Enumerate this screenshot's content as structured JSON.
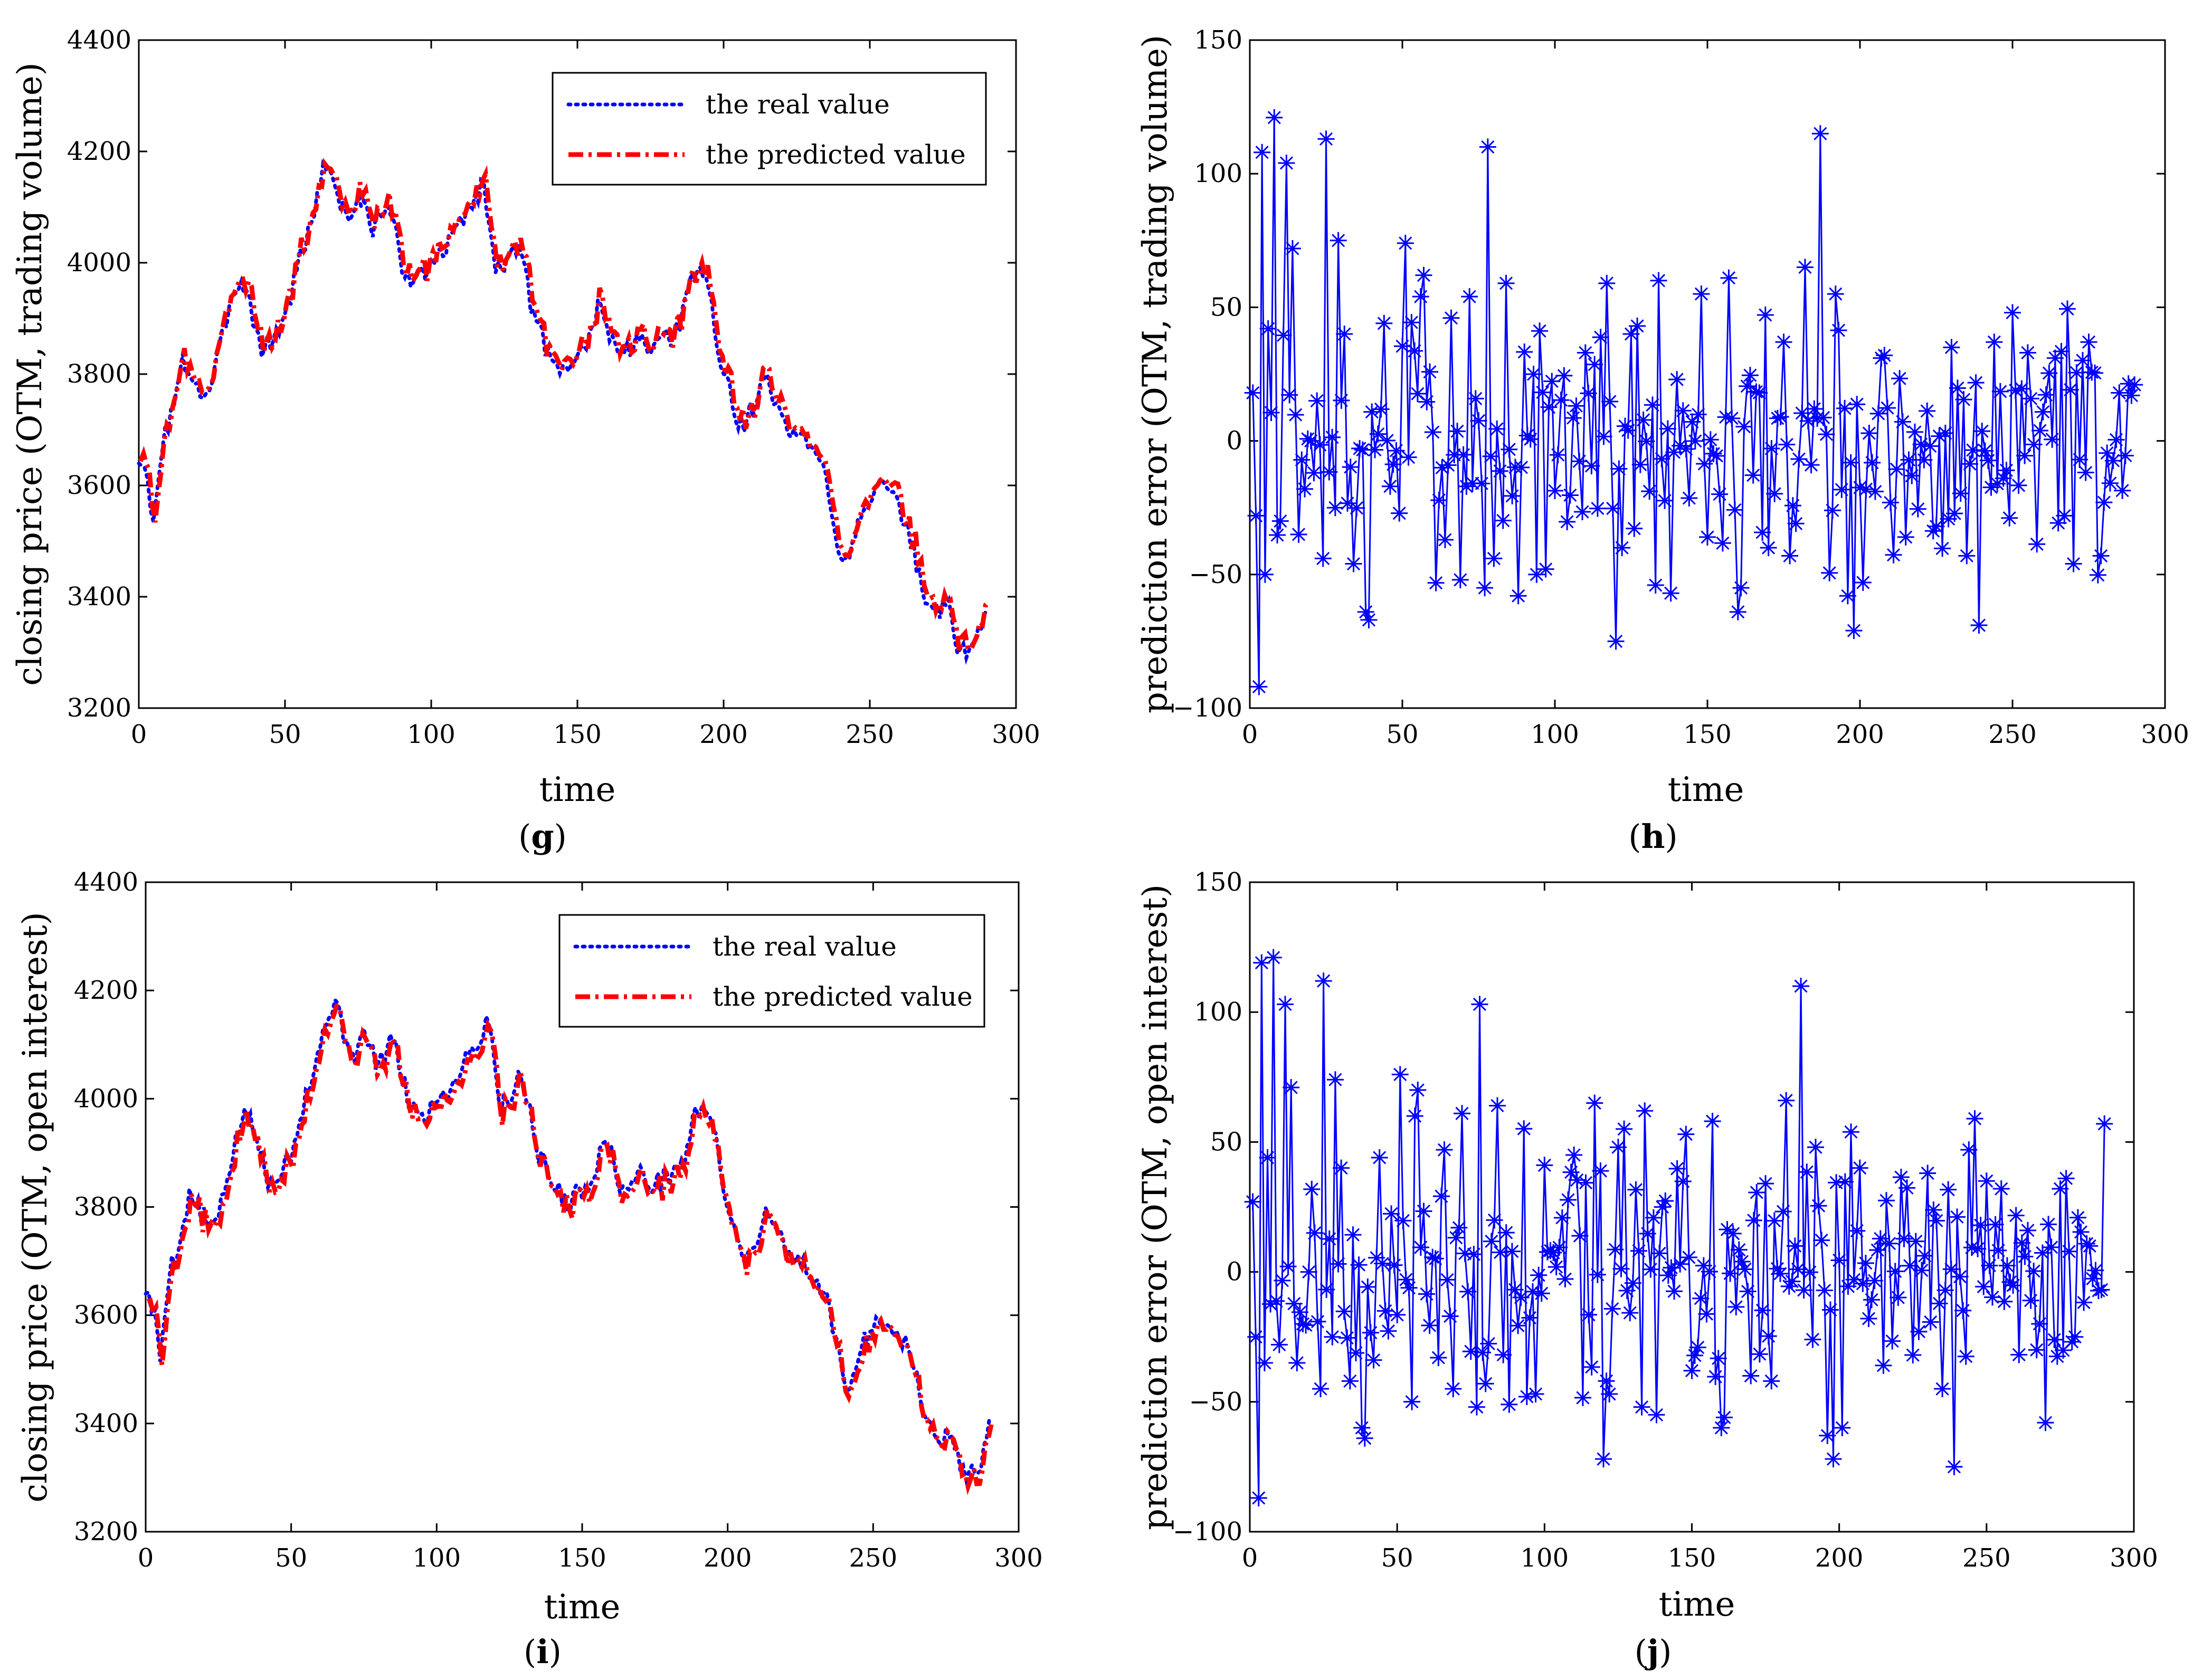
{
  "chart_data": [
    {
      "id": "g",
      "type": "line",
      "panel_label": "g",
      "xlabel": "time",
      "ylabel": "closing price (OTM, trading volume)",
      "xlim": [
        0,
        300
      ],
      "ylim": [
        3200,
        4400
      ],
      "xticks": [
        0,
        50,
        100,
        150,
        200,
        250,
        300
      ],
      "yticks": [
        3200,
        3400,
        3600,
        3800,
        4000,
        4200,
        4400
      ],
      "legend_position": "top-right",
      "key_points": [
        [
          0,
          3650
        ],
        [
          3,
          3600
        ],
        [
          5,
          3520
        ],
        [
          8,
          3680
        ],
        [
          12,
          3740
        ],
        [
          15,
          3820
        ],
        [
          18,
          3800
        ],
        [
          22,
          3760
        ],
        [
          25,
          3780
        ],
        [
          28,
          3850
        ],
        [
          32,
          3950
        ],
        [
          35,
          3970
        ],
        [
          38,
          3930
        ],
        [
          42,
          3840
        ],
        [
          45,
          3860
        ],
        [
          50,
          3900
        ],
        [
          55,
          4010
        ],
        [
          58,
          4050
        ],
        [
          62,
          4150
        ],
        [
          65,
          4180
        ],
        [
          68,
          4120
        ],
        [
          72,
          4080
        ],
        [
          75,
          4120
        ],
        [
          80,
          4060
        ],
        [
          85,
          4110
        ],
        [
          90,
          4000
        ],
        [
          95,
          3960
        ],
        [
          100,
          4000
        ],
        [
          105,
          4020
        ],
        [
          110,
          4080
        ],
        [
          115,
          4110
        ],
        [
          118,
          4150
        ],
        [
          122,
          3980
        ],
        [
          125,
          4000
        ],
        [
          128,
          4050
        ],
        [
          132,
          3980
        ],
        [
          135,
          3900
        ],
        [
          140,
          3840
        ],
        [
          145,
          3810
        ],
        [
          150,
          3830
        ],
        [
          155,
          3870
        ],
        [
          158,
          3940
        ],
        [
          162,
          3850
        ],
        [
          165,
          3830
        ],
        [
          170,
          3860
        ],
        [
          175,
          3840
        ],
        [
          180,
          3860
        ],
        [
          185,
          3880
        ],
        [
          188,
          3960
        ],
        [
          192,
          3990
        ],
        [
          195,
          3960
        ],
        [
          198,
          3830
        ],
        [
          202,
          3780
        ],
        [
          205,
          3700
        ],
        [
          210,
          3740
        ],
        [
          214,
          3800
        ],
        [
          218,
          3740
        ],
        [
          222,
          3700
        ],
        [
          226,
          3690
        ],
        [
          230,
          3660
        ],
        [
          235,
          3620
        ],
        [
          240,
          3470
        ],
        [
          243,
          3480
        ],
        [
          246,
          3540
        ],
        [
          250,
          3580
        ],
        [
          254,
          3600
        ],
        [
          258,
          3570
        ],
        [
          262,
          3540
        ],
        [
          266,
          3460
        ],
        [
          270,
          3380
        ],
        [
          274,
          3370
        ],
        [
          277,
          3390
        ],
        [
          280,
          3310
        ],
        [
          283,
          3300
        ],
        [
          287,
          3330
        ],
        [
          290,
          3390
        ]
      ],
      "series": [
        {
          "name": "the real value",
          "color": "#0000ff",
          "style": "dotted",
          "offset": 0
        },
        {
          "name": "the predicted value",
          "color": "#ff0000",
          "style": "dashdot",
          "offset": 10
        }
      ]
    },
    {
      "id": "h",
      "type": "line",
      "marker": "asterisk",
      "panel_label": "h",
      "xlabel": "time",
      "ylabel": "prediction error (OTM, trading volume)",
      "xlim": [
        0,
        300
      ],
      "ylim": [
        -100,
        150
      ],
      "xticks": [
        0,
        50,
        100,
        150,
        200,
        250,
        300
      ],
      "yticks": [
        -100,
        -50,
        0,
        50,
        100,
        150
      ],
      "color": "#0000ff",
      "n_points": 290,
      "seed": 7,
      "key_points": [
        [
          1,
          18
        ],
        [
          2,
          -28
        ],
        [
          3,
          -92
        ],
        [
          4,
          108
        ],
        [
          5,
          -50
        ],
        [
          6,
          42
        ],
        [
          8,
          121
        ],
        [
          10,
          -30
        ],
        [
          12,
          104
        ],
        [
          14,
          72
        ],
        [
          16,
          -35
        ],
        [
          18,
          -18
        ],
        [
          20,
          0
        ],
        [
          22,
          15
        ],
        [
          24,
          -44
        ],
        [
          25,
          113
        ],
        [
          28,
          -25
        ],
        [
          29,
          75
        ],
        [
          31,
          40
        ],
        [
          34,
          -46
        ],
        [
          38,
          -64
        ],
        [
          39,
          -67
        ],
        [
          44,
          44
        ],
        [
          46,
          -17
        ],
        [
          51,
          74
        ],
        [
          56,
          54
        ],
        [
          57,
          62
        ],
        [
          64,
          -37
        ],
        [
          66,
          46
        ],
        [
          69,
          -52
        ],
        [
          72,
          54
        ],
        [
          77,
          -55
        ],
        [
          78,
          110
        ],
        [
          80,
          -44
        ],
        [
          84,
          59
        ],
        [
          88,
          -58
        ],
        [
          94,
          -50
        ],
        [
          97,
          -48
        ],
        [
          110,
          33
        ],
        [
          117,
          59
        ],
        [
          120,
          -75
        ],
        [
          122,
          -40
        ],
        [
          125,
          40
        ],
        [
          127,
          43
        ],
        [
          133,
          -54
        ],
        [
          134,
          60
        ],
        [
          138,
          -57
        ],
        [
          140,
          23
        ],
        [
          148,
          55
        ],
        [
          150,
          -36
        ],
        [
          157,
          61
        ],
        [
          160,
          -64
        ],
        [
          161,
          -55
        ],
        [
          170,
          -40
        ],
        [
          175,
          37
        ],
        [
          177,
          -43
        ],
        [
          182,
          65
        ],
        [
          185,
          12
        ],
        [
          187,
          115
        ],
        [
          191,
          -26
        ],
        [
          192,
          55
        ],
        [
          196,
          -58
        ],
        [
          198,
          -71
        ],
        [
          201,
          -53
        ],
        [
          207,
          31
        ],
        [
          215,
          -36
        ],
        [
          225,
          -32
        ],
        [
          230,
          35
        ],
        [
          235,
          -43
        ],
        [
          239,
          -69
        ],
        [
          244,
          37
        ],
        [
          250,
          48
        ],
        [
          255,
          33
        ],
        [
          264,
          31
        ],
        [
          267,
          -28
        ],
        [
          270,
          -46
        ],
        [
          275,
          37
        ],
        [
          280,
          -23
        ],
        [
          285,
          18
        ],
        [
          290,
          21
        ]
      ]
    },
    {
      "id": "i",
      "type": "line",
      "panel_label": "i",
      "xlabel": "time",
      "ylabel": "closing price (OTM, open interest)",
      "xlim": [
        0,
        300
      ],
      "ylim": [
        3200,
        4400
      ],
      "xticks": [
        0,
        50,
        100,
        150,
        200,
        250,
        300
      ],
      "yticks": [
        3200,
        3400,
        3600,
        3800,
        4000,
        4200,
        4400
      ],
      "legend_position": "top-right",
      "key_points": [
        [
          0,
          3650
        ],
        [
          3,
          3600
        ],
        [
          5,
          3520
        ],
        [
          8,
          3680
        ],
        [
          12,
          3740
        ],
        [
          15,
          3820
        ],
        [
          18,
          3800
        ],
        [
          22,
          3760
        ],
        [
          25,
          3780
        ],
        [
          28,
          3850
        ],
        [
          32,
          3950
        ],
        [
          35,
          3970
        ],
        [
          38,
          3930
        ],
        [
          42,
          3840
        ],
        [
          45,
          3860
        ],
        [
          50,
          3900
        ],
        [
          55,
          4010
        ],
        [
          58,
          4050
        ],
        [
          62,
          4150
        ],
        [
          65,
          4180
        ],
        [
          68,
          4120
        ],
        [
          72,
          4080
        ],
        [
          75,
          4120
        ],
        [
          80,
          4060
        ],
        [
          85,
          4110
        ],
        [
          90,
          4000
        ],
        [
          95,
          3960
        ],
        [
          100,
          4000
        ],
        [
          105,
          4020
        ],
        [
          110,
          4080
        ],
        [
          115,
          4110
        ],
        [
          118,
          4150
        ],
        [
          122,
          3980
        ],
        [
          125,
          4000
        ],
        [
          128,
          4050
        ],
        [
          132,
          3980
        ],
        [
          135,
          3900
        ],
        [
          140,
          3840
        ],
        [
          145,
          3810
        ],
        [
          150,
          3830
        ],
        [
          155,
          3870
        ],
        [
          158,
          3940
        ],
        [
          162,
          3850
        ],
        [
          165,
          3830
        ],
        [
          170,
          3860
        ],
        [
          175,
          3840
        ],
        [
          180,
          3860
        ],
        [
          185,
          3880
        ],
        [
          188,
          3960
        ],
        [
          192,
          3990
        ],
        [
          195,
          3960
        ],
        [
          198,
          3830
        ],
        [
          202,
          3780
        ],
        [
          205,
          3700
        ],
        [
          210,
          3740
        ],
        [
          214,
          3800
        ],
        [
          218,
          3740
        ],
        [
          222,
          3700
        ],
        [
          226,
          3690
        ],
        [
          230,
          3660
        ],
        [
          235,
          3620
        ],
        [
          240,
          3470
        ],
        [
          243,
          3480
        ],
        [
          246,
          3540
        ],
        [
          250,
          3580
        ],
        [
          254,
          3600
        ],
        [
          258,
          3570
        ],
        [
          262,
          3540
        ],
        [
          266,
          3460
        ],
        [
          270,
          3380
        ],
        [
          274,
          3370
        ],
        [
          277,
          3390
        ],
        [
          280,
          3310
        ],
        [
          283,
          3300
        ],
        [
          287,
          3330
        ],
        [
          290,
          3400
        ]
      ],
      "series": [
        {
          "name": "the real value",
          "color": "#0000ff",
          "style": "dotted",
          "offset": 0
        },
        {
          "name": "the predicted value",
          "color": "#ff0000",
          "style": "dashdot",
          "offset": -8
        }
      ]
    },
    {
      "id": "j",
      "type": "line",
      "marker": "asterisk",
      "panel_label": "j",
      "xlabel": "time",
      "ylabel": "prediction error (OTM, open interest)",
      "xlim": [
        0,
        300
      ],
      "ylim": [
        -100,
        150
      ],
      "xticks": [
        0,
        50,
        100,
        150,
        200,
        250,
        300
      ],
      "yticks": [
        -100,
        -50,
        0,
        50,
        100,
        150
      ],
      "color": "#0000ff",
      "n_points": 290,
      "seed": 11,
      "key_points": [
        [
          1,
          27
        ],
        [
          2,
          -25
        ],
        [
          3,
          -87
        ],
        [
          4,
          119
        ],
        [
          5,
          -35
        ],
        [
          6,
          44
        ],
        [
          8,
          121
        ],
        [
          10,
          -28
        ],
        [
          12,
          103
        ],
        [
          14,
          71
        ],
        [
          16,
          -35
        ],
        [
          18,
          -20
        ],
        [
          20,
          0
        ],
        [
          22,
          15
        ],
        [
          24,
          -45
        ],
        [
          25,
          112
        ],
        [
          28,
          -25
        ],
        [
          29,
          74
        ],
        [
          31,
          40
        ],
        [
          34,
          -42
        ],
        [
          38,
          -60
        ],
        [
          39,
          -64
        ],
        [
          44,
          44
        ],
        [
          46,
          -15
        ],
        [
          51,
          76
        ],
        [
          56,
          60
        ],
        [
          57,
          70
        ],
        [
          64,
          -33
        ],
        [
          66,
          47
        ],
        [
          69,
          -45
        ],
        [
          72,
          61
        ],
        [
          77,
          -52
        ],
        [
          78,
          103
        ],
        [
          80,
          -43
        ],
        [
          84,
          64
        ],
        [
          88,
          -51
        ],
        [
          94,
          -48
        ],
        [
          97,
          -47
        ],
        [
          110,
          45
        ],
        [
          117,
          65
        ],
        [
          120,
          -72
        ],
        [
          122,
          -47
        ],
        [
          125,
          48
        ],
        [
          127,
          55
        ],
        [
          133,
          -52
        ],
        [
          134,
          62
        ],
        [
          138,
          -55
        ],
        [
          140,
          25
        ],
        [
          148,
          53
        ],
        [
          150,
          -38
        ],
        [
          157,
          58
        ],
        [
          160,
          -60
        ],
        [
          161,
          -56
        ],
        [
          170,
          -40
        ],
        [
          175,
          34
        ],
        [
          177,
          -42
        ],
        [
          182,
          66
        ],
        [
          185,
          10
        ],
        [
          187,
          110
        ],
        [
          191,
          -26
        ],
        [
          192,
          48
        ],
        [
          196,
          -63
        ],
        [
          198,
          -72
        ],
        [
          201,
          -60
        ],
        [
          207,
          40
        ],
        [
          215,
          -36
        ],
        [
          225,
          -32
        ],
        [
          230,
          38
        ],
        [
          235,
          -45
        ],
        [
          239,
          -75
        ],
        [
          244,
          47
        ],
        [
          246,
          59
        ],
        [
          250,
          35
        ],
        [
          255,
          32
        ],
        [
          264,
          16
        ],
        [
          267,
          -30
        ],
        [
          270,
          -58
        ],
        [
          275,
          32
        ],
        [
          280,
          -25
        ],
        [
          285,
          10
        ],
        [
          290,
          57
        ]
      ]
    }
  ]
}
